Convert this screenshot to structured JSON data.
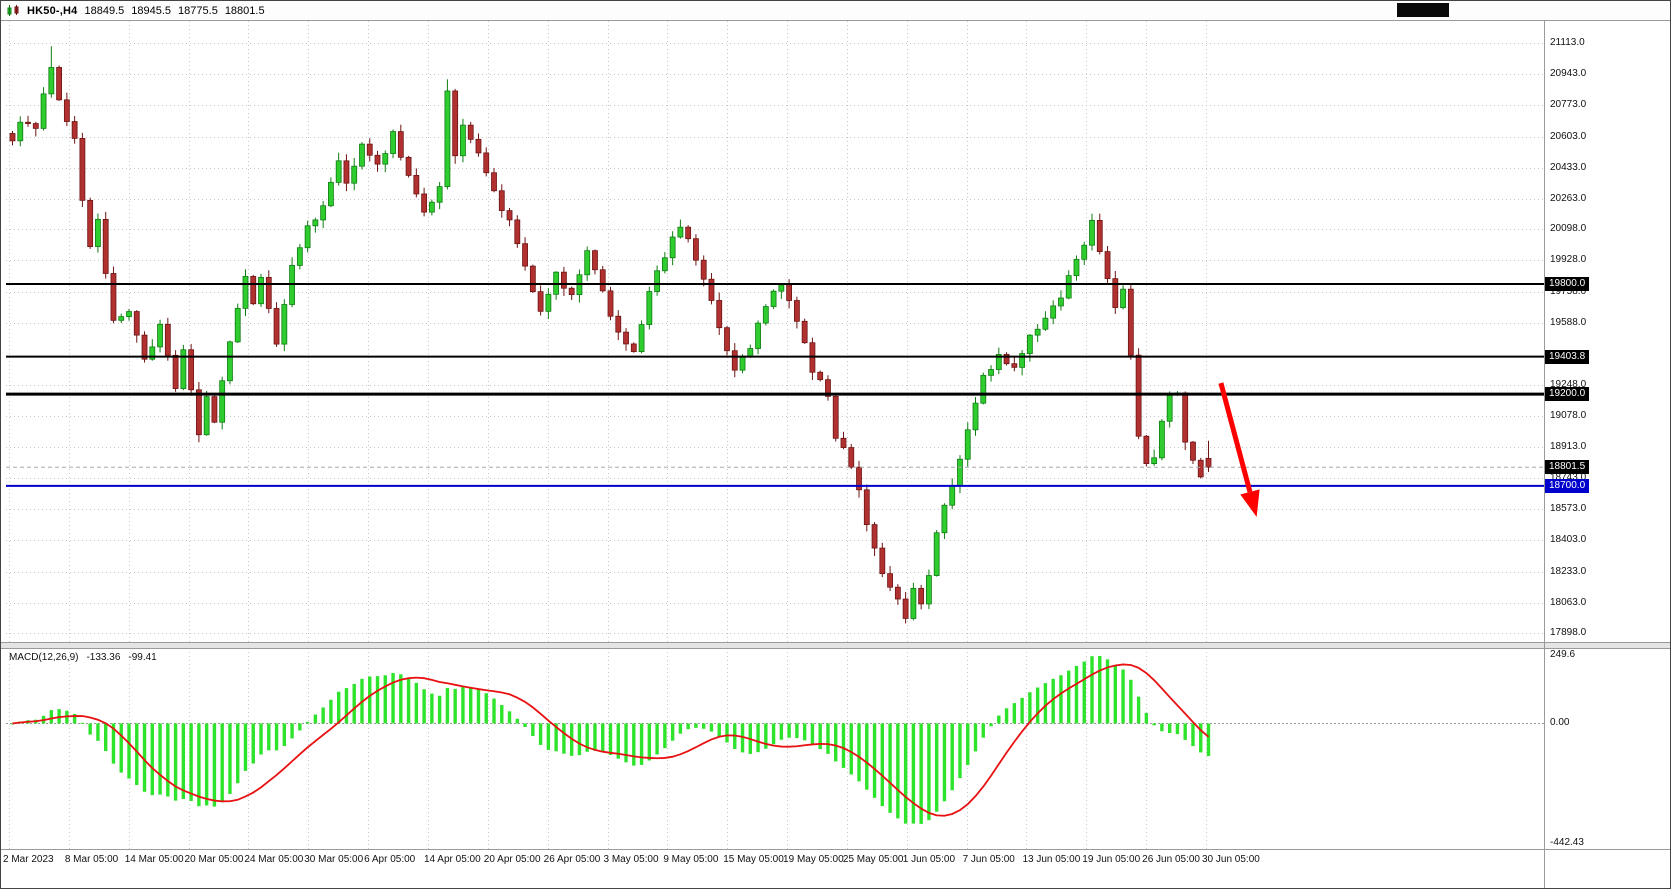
{
  "colors": {
    "bull": "#2ecc2e",
    "bull_border": "#0f7d12",
    "bear": "#b13131",
    "bear_border": "#6e1414",
    "macd_hist": "#2ee32b",
    "signal": "#e81010",
    "grid": "#c9c9c9",
    "level_black": "#000000",
    "level_blue": "#0000cc",
    "arrow": "#ff0000"
  },
  "title_bar": {
    "symbol": "HK50-,H4",
    "open": "18849.5",
    "high": "18945.5",
    "low": "18775.5",
    "close": "18801.5"
  },
  "price_axis": {
    "ticks": [
      21113.0,
      20943.0,
      20773.0,
      20603.0,
      20433.0,
      20263.0,
      20098.0,
      19928.0,
      19758.0,
      19588.0,
      19248.0,
      19078.0,
      18913.0,
      18743.0,
      18573.0,
      18403.0,
      18233.0,
      18063.0,
      17898.0
    ],
    "badges": [
      {
        "label": "19800.0",
        "price": 19800.0,
        "bg": "#000000"
      },
      {
        "label": "19403.8",
        "price": 19403.8,
        "bg": "#000000"
      },
      {
        "label": "19200.0",
        "price": 19200.0,
        "bg": "#000000"
      },
      {
        "label": "18801.5",
        "price": 18801.5,
        "bg": "#000000"
      },
      {
        "label": "18700.0",
        "price": 18700.0,
        "bg": "#0000cc"
      }
    ]
  },
  "time_axis": {
    "labels": [
      "2 Mar 2023",
      "8 Mar 05:00",
      "14 Mar 05:00",
      "20 Mar 05:00",
      "24 Mar 05:00",
      "30 Mar 05:00",
      "6 Apr 05:00",
      "14 Apr 05:00",
      "20 Apr 05:00",
      "26 Apr 05:00",
      "3 May 05:00",
      "9 May 05:00",
      "15 May 05:00",
      "19 May 05:00",
      "25 May 05:00",
      "1 Jun 05:00",
      "7 Jun 05:00",
      "13 Jun 05:00",
      "19 Jun 05:00",
      "26 Jun 05:00",
      "30 Jun 05:00"
    ]
  },
  "macd_panel": {
    "name": "MACD(12,26,9)",
    "macd_value": "-133.36",
    "signal_value": "-99.41",
    "scale_max": "249.6",
    "scale_zero": "0.00",
    "scale_min": "-442.43"
  },
  "chart_data": {
    "type": "candlestick",
    "symbol": "HK50",
    "timeframe": "H4",
    "last_ohlc": {
      "open": 18849.5,
      "high": 18945.5,
      "low": 18775.5,
      "close": 18801.5
    },
    "y_range": [
      17898.0,
      21113.0
    ],
    "y_ticks": [
      21113.0,
      20943.0,
      20773.0,
      20603.0,
      20433.0,
      20263.0,
      20098.0,
      19928.0,
      19758.0,
      19588.0,
      19248.0,
      19078.0,
      18913.0,
      18743.0,
      18573.0,
      18403.0,
      18233.0,
      18063.0,
      17898.0
    ],
    "x_labels": [
      "2 Mar 2023",
      "8 Mar 05:00",
      "14 Mar 05:00",
      "20 Mar 05:00",
      "24 Mar 05:00",
      "30 Mar 05:00",
      "6 Apr 05:00",
      "14 Apr 05:00",
      "20 Apr 05:00",
      "26 Apr 05:00",
      "3 May 05:00",
      "9 May 05:00",
      "15 May 05:00",
      "19 May 05:00",
      "25 May 05:00",
      "1 Jun 05:00",
      "7 Jun 05:00",
      "13 Jun 05:00",
      "19 Jun 05:00",
      "26 Jun 05:00",
      "30 Jun 05:00"
    ],
    "bars": 155,
    "close_path": [
      [
        0,
        20580
      ],
      [
        1,
        20700
      ],
      [
        3,
        20630
      ],
      [
        5,
        21000
      ],
      [
        6,
        20820
      ],
      [
        8,
        20580
      ],
      [
        9,
        20260
      ],
      [
        10,
        20020
      ],
      [
        11,
        20150
      ],
      [
        13,
        19580
      ],
      [
        15,
        19660
      ],
      [
        17,
        19390
      ],
      [
        19,
        19560
      ],
      [
        21,
        19230
      ],
      [
        22,
        19420
      ],
      [
        24,
        18990
      ],
      [
        25,
        19180
      ],
      [
        26,
        19060
      ],
      [
        28,
        19480
      ],
      [
        30,
        19820
      ],
      [
        31,
        19700
      ],
      [
        32,
        19850
      ],
      [
        34,
        19480
      ],
      [
        36,
        19880
      ],
      [
        38,
        20120
      ],
      [
        40,
        20220
      ],
      [
        42,
        20450
      ],
      [
        43,
        20340
      ],
      [
        45,
        20580
      ],
      [
        47,
        20440
      ],
      [
        49,
        20620
      ],
      [
        51,
        20390
      ],
      [
        53,
        20190
      ],
      [
        55,
        20320
      ],
      [
        56,
        20860
      ],
      [
        57,
        20500
      ],
      [
        58,
        20650
      ],
      [
        60,
        20530
      ],
      [
        62,
        20300
      ],
      [
        64,
        20130
      ],
      [
        66,
        19890
      ],
      [
        68,
        19630
      ],
      [
        70,
        19850
      ],
      [
        72,
        19730
      ],
      [
        74,
        19960
      ],
      [
        76,
        19760
      ],
      [
        78,
        19530
      ],
      [
        80,
        19440
      ],
      [
        82,
        19750
      ],
      [
        84,
        19950
      ],
      [
        86,
        20120
      ],
      [
        87,
        20060
      ],
      [
        89,
        19820
      ],
      [
        91,
        19560
      ],
      [
        93,
        19320
      ],
      [
        95,
        19460
      ],
      [
        97,
        19680
      ],
      [
        99,
        19800
      ],
      [
        101,
        19590
      ],
      [
        103,
        19340
      ],
      [
        105,
        19180
      ],
      [
        106,
        18960
      ],
      [
        108,
        18820
      ],
      [
        110,
        18500
      ],
      [
        112,
        18240
      ],
      [
        114,
        18070
      ],
      [
        115,
        17990
      ],
      [
        116,
        18130
      ],
      [
        117,
        18060
      ],
      [
        118,
        18230
      ],
      [
        119,
        18450
      ],
      [
        121,
        18700
      ],
      [
        123,
        19000
      ],
      [
        125,
        19300
      ],
      [
        127,
        19400
      ],
      [
        129,
        19340
      ],
      [
        131,
        19500
      ],
      [
        133,
        19620
      ],
      [
        135,
        19740
      ],
      [
        137,
        19930
      ],
      [
        139,
        20130
      ],
      [
        140,
        19990
      ],
      [
        141,
        19840
      ],
      [
        142,
        19680
      ],
      [
        143,
        19760
      ],
      [
        144,
        19400
      ],
      [
        145,
        18950
      ],
      [
        146,
        18830
      ],
      [
        147,
        18870
      ],
      [
        148,
        19060
      ],
      [
        149,
        19190
      ],
      [
        150,
        19210
      ],
      [
        151,
        18960
      ],
      [
        152,
        18830
      ],
      [
        153,
        18760
      ],
      [
        154,
        18801.5
      ]
    ],
    "spikes": [
      {
        "bar": 5,
        "high": 21095
      },
      {
        "bar": 56,
        "high": 20915
      },
      {
        "bar": 115,
        "low": 17950
      }
    ],
    "horizontal_levels": [
      {
        "price": 19800.0,
        "color": "#000000",
        "width": 2
      },
      {
        "price": 19403.8,
        "color": "#000000",
        "width": 2
      },
      {
        "price": 19200.0,
        "color": "#000000",
        "width": 3
      },
      {
        "price": 18700.0,
        "color": "#0000cc",
        "width": 2
      }
    ],
    "current_price": 18801.5,
    "indicator": {
      "type": "MACD",
      "fast": 12,
      "slow": 26,
      "signal": 9,
      "macd": -133.36,
      "signal_value": -99.41,
      "range": [
        -442.43,
        249.6
      ]
    },
    "annotations": [
      {
        "type": "arrow",
        "color": "#ff0000",
        "from": {
          "bar": 155.6,
          "price": 19260
        },
        "to": {
          "bar": 160.2,
          "price": 18530
        }
      }
    ]
  }
}
